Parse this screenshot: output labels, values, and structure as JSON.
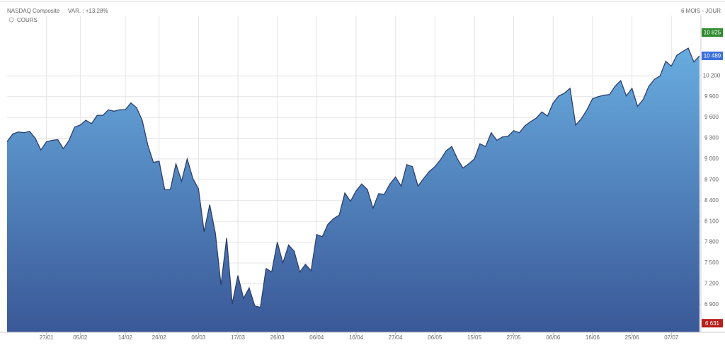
{
  "chart_data": {
    "type": "area",
    "title": "NASDAQ Composite",
    "subtitle": "VAR. : +13.28%",
    "period": "6 MOIS - JOUR",
    "legend": "COURS",
    "color": "#2c3f6e",
    "gradient": [
      "#68acdf",
      "#3a5897"
    ],
    "grid": true,
    "categories": [
      null,
      null,
      null,
      null,
      null,
      null,
      null,
      "27/01",
      null,
      null,
      null,
      null,
      null,
      "05/02",
      null,
      null,
      null,
      null,
      null,
      null,
      null,
      "14/02",
      null,
      null,
      null,
      null,
      null,
      "26/02",
      null,
      null,
      null,
      null,
      null,
      null,
      "06/03",
      null,
      null,
      null,
      null,
      null,
      null,
      "17/03",
      null,
      null,
      null,
      null,
      null,
      null,
      "26/03",
      null,
      null,
      null,
      null,
      null,
      null,
      "06/04",
      null,
      null,
      null,
      null,
      null,
      null,
      "16/04",
      null,
      null,
      null,
      null,
      null,
      null,
      "27/04",
      null,
      null,
      null,
      null,
      null,
      null,
      "06/05",
      null,
      null,
      null,
      null,
      null,
      null,
      "15/05",
      null,
      null,
      null,
      null,
      null,
      null,
      "27/05",
      null,
      null,
      null,
      null,
      null,
      null,
      "06/06",
      null,
      null,
      null,
      null,
      null,
      null,
      "16/06",
      null,
      null,
      null,
      null,
      null,
      null,
      "25/06",
      null,
      null,
      null,
      null,
      null,
      null,
      "07/07",
      null,
      null,
      null,
      null,
      null
    ],
    "values": [
      9250,
      9360,
      9390,
      9380,
      9400,
      9300,
      9130,
      9250,
      9270,
      9280,
      9150,
      9270,
      9460,
      9490,
      9560,
      9510,
      9630,
      9630,
      9710,
      9690,
      9710,
      9710,
      9810,
      9740,
      9560,
      9200,
      8950,
      8970,
      8560,
      8560,
      8930,
      8680,
      9000,
      8720,
      8570,
      7950,
      8340,
      7930,
      7180,
      7860,
      6910,
      7320,
      6990,
      7140,
      6880,
      6860,
      7420,
      7370,
      7800,
      7500,
      7760,
      7670,
      7370,
      7480,
      7390,
      7910,
      7880,
      8060,
      8140,
      8190,
      8510,
      8390,
      8540,
      8640,
      8560,
      8290,
      8500,
      8490,
      8640,
      8740,
      8610,
      8920,
      8890,
      8610,
      8720,
      8820,
      8890,
      8990,
      9120,
      9180,
      9000,
      8870,
      8930,
      9000,
      9220,
      9180,
      9380,
      9270,
      9320,
      9330,
      9410,
      9380,
      9480,
      9540,
      9590,
      9680,
      9620,
      9810,
      9910,
      9950,
      10020,
      9490,
      9580,
      9710,
      9870,
      9900,
      9920,
      9930,
      10050,
      10130,
      9910,
      10020,
      9760,
      9860,
      10050,
      10150,
      10200,
      10410,
      10340,
      10500,
      10550,
      10600,
      10400,
      10489
    ],
    "ylim": [
      6500,
      11070
    ],
    "yticks": [
      {
        "value": 6900,
        "label": "6 900"
      },
      {
        "value": 7200,
        "label": "7 200"
      },
      {
        "value": 7500,
        "label": "7 500"
      },
      {
        "value": 7800,
        "label": "7 800"
      },
      {
        "value": 8100,
        "label": "8 100"
      },
      {
        "value": 8400,
        "label": "8 400"
      },
      {
        "value": 8700,
        "label": "8 700"
      },
      {
        "value": 9000,
        "label": "9 000"
      },
      {
        "value": 9300,
        "label": "9 300"
      },
      {
        "value": 9600,
        "label": "9 600"
      },
      {
        "value": 9900,
        "label": "9 900"
      },
      {
        "value": 10200,
        "label": "10 200"
      }
    ],
    "price_labels": [
      {
        "value": 10825,
        "label": "10 825",
        "color": "#2e8b2e"
      },
      {
        "value": 10489,
        "label": "10 489",
        "color": "#3b6fe0"
      },
      {
        "value": 6631,
        "label": "6 631",
        "color": "#b8211d"
      }
    ]
  }
}
